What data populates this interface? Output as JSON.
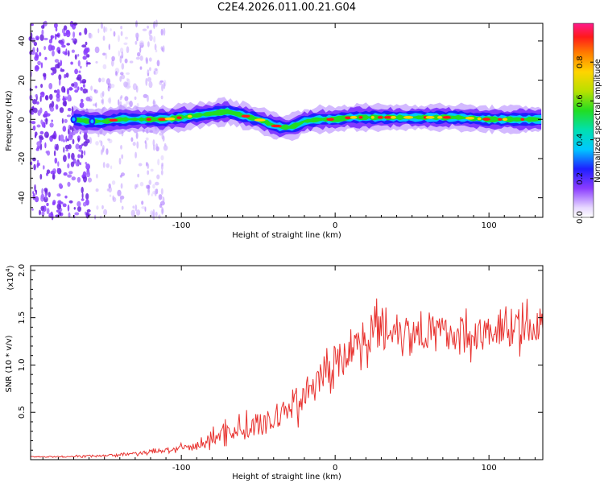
{
  "title": "C2E4.2026.011.00.21.G04",
  "colors": {
    "line": "#e8322f",
    "background": "#ffffff",
    "axis": "#000000",
    "scatter": "#8a3cff"
  },
  "chart_data": [
    {
      "type": "heatmap",
      "name": "spectrogram",
      "xlabel": "Height of straight line (km)",
      "ylabel": "Frequency (Hz)",
      "xlim": [
        -198,
        135
      ],
      "ylim": [
        -50,
        49
      ],
      "xticks": [
        -100,
        0,
        100
      ],
      "xtick_labels": [
        "-100",
        "0",
        "100"
      ],
      "yticks": [
        -40,
        -20,
        0,
        20,
        40
      ],
      "ytick_labels": [
        "-40",
        "-20",
        "0",
        "20",
        "40"
      ],
      "ridge": {
        "x": [
          -170,
          -160,
          -150,
          -140,
          -130,
          -120,
          -110,
          -100,
          -90,
          -80,
          -70,
          -60,
          -50,
          -40,
          -35,
          -30,
          -25,
          -20,
          -10,
          0,
          10,
          20,
          40,
          60,
          80,
          100,
          120,
          135
        ],
        "y": [
          0,
          -1,
          -1,
          0,
          0,
          0,
          0,
          1,
          2,
          3,
          4,
          2,
          0,
          -3,
          -4,
          -4,
          -3,
          -1,
          0,
          0,
          1,
          1,
          1,
          1,
          1,
          0,
          0,
          0
        ]
      },
      "colorbar": {
        "label": "Normalized spectral amplitude",
        "range": [
          0,
          1
        ],
        "ticks": [
          0.0,
          0.2,
          0.4,
          0.6,
          0.8
        ],
        "tick_labels": [
          "0.0",
          "0.2",
          "0.4",
          "0.6",
          "0.8"
        ]
      }
    },
    {
      "type": "line",
      "name": "snr",
      "xlabel": "Height of straight line (km)",
      "ylabel": "SNR (10 * v/v)",
      "scale_label": "(x10",
      "scale_exp": "4",
      "scale_close": ")",
      "xlim": [
        -198,
        135
      ],
      "ylim": [
        0,
        2.05
      ],
      "xticks": [
        -100,
        0,
        100
      ],
      "xtick_labels": [
        "-100",
        "0",
        "100"
      ],
      "yticks": [
        0.5,
        1.0,
        1.5,
        2.0
      ],
      "ytick_labels": [
        "0.5",
        "1.0",
        "1.5",
        "2.0"
      ],
      "series": [
        {
          "name": "SNR",
          "x": [
            -198,
            -180,
            -160,
            -140,
            -120,
            -100,
            -90,
            -80,
            -70,
            -60,
            -50,
            -40,
            -35,
            -30,
            -25,
            -20,
            -15,
            -10,
            -5,
            0,
            5,
            10,
            15,
            20,
            25,
            30,
            35,
            40,
            50,
            60,
            70,
            80,
            90,
            100,
            110,
            120,
            130,
            135
          ],
          "y": [
            0.03,
            0.03,
            0.04,
            0.05,
            0.08,
            0.12,
            0.14,
            0.22,
            0.3,
            0.32,
            0.35,
            0.42,
            0.5,
            0.55,
            0.62,
            0.7,
            0.75,
            0.82,
            0.95,
            1.05,
            1.05,
            1.15,
            1.25,
            1.3,
            1.35,
            1.4,
            1.4,
            1.38,
            1.36,
            1.35,
            1.34,
            1.33,
            1.33,
            1.34,
            1.36,
            1.38,
            1.4,
            1.4
          ],
          "noise": [
            0.01,
            0.01,
            0.015,
            0.02,
            0.03,
            0.05,
            0.07,
            0.12,
            0.16,
            0.18,
            0.2,
            0.22,
            0.24,
            0.26,
            0.28,
            0.3,
            0.3,
            0.3,
            0.3,
            0.3,
            0.3,
            0.3,
            0.3,
            0.32,
            0.33,
            0.34,
            0.34,
            0.32,
            0.3,
            0.3,
            0.29,
            0.28,
            0.28,
            0.28,
            0.28,
            0.28,
            0.29,
            0.29
          ]
        }
      ]
    }
  ]
}
